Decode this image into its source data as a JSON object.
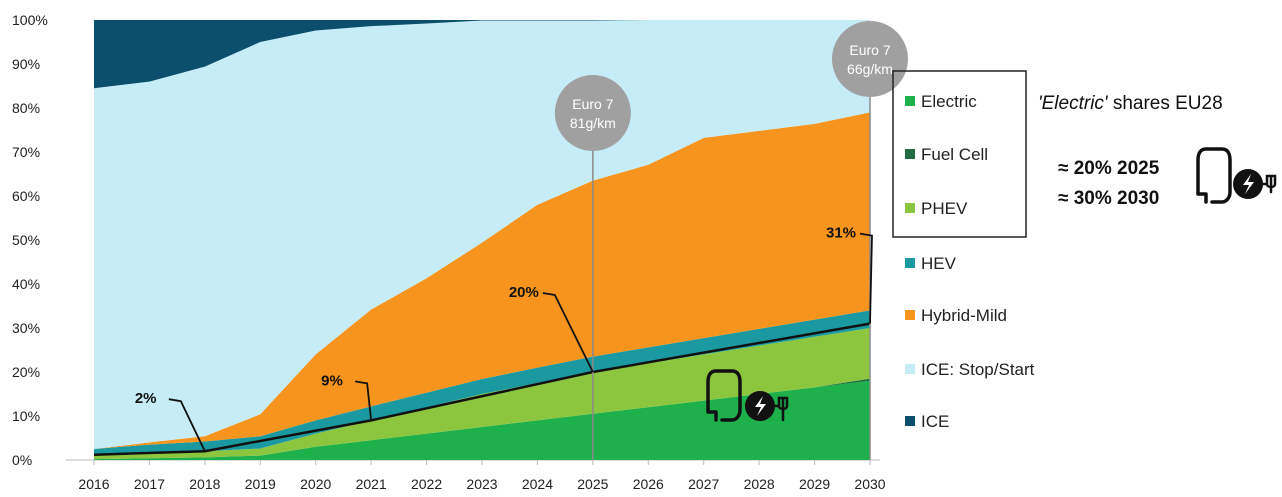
{
  "chart_data": {
    "type": "area",
    "stacked": true,
    "x": [
      2016,
      2017,
      2018,
      2019,
      2020,
      2021,
      2022,
      2023,
      2024,
      2025,
      2026,
      2027,
      2028,
      2029,
      2030
    ],
    "ylim": [
      0,
      100
    ],
    "y_ticks": [
      "0%",
      "10%",
      "20%",
      "30%",
      "40%",
      "50%",
      "60%",
      "70%",
      "80%",
      "90%",
      "100%"
    ],
    "x_ticks": [
      "2016",
      "2017",
      "2018",
      "2019",
      "2020",
      "2021",
      "2022",
      "2023",
      "2024",
      "2025",
      "2026",
      "2027",
      "2028",
      "2029",
      "2030"
    ],
    "series": [
      {
        "name": "Electric",
        "color": "#1db04b",
        "values": [
          0.2,
          0.4,
          0.6,
          1,
          3,
          4.5,
          6,
          7.5,
          9,
          10.5,
          12,
          13.5,
          15,
          16.5,
          18
        ]
      },
      {
        "name": "Fuel Cell",
        "color": "#1f6e43",
        "values": [
          0,
          0,
          0,
          0,
          0,
          0,
          0,
          0,
          0,
          0,
          0,
          0,
          0,
          0,
          0.5
        ]
      },
      {
        "name": "PHEV",
        "color": "#8cc63f",
        "values": [
          1,
          1.3,
          1.4,
          1.6,
          3,
          4.5,
          6,
          7.5,
          8.5,
          9.5,
          10,
          10.5,
          11,
          11.5,
          11.5
        ]
      },
      {
        "name": "HEV",
        "color": "#1a9aa0",
        "values": [
          1.3,
          1.8,
          2.2,
          2.8,
          3,
          3.2,
          3.3,
          3.4,
          3.5,
          3.5,
          3.6,
          3.7,
          3.8,
          3.9,
          4
        ]
      },
      {
        "name": "Hybrid-Mild",
        "color": "#f7941d",
        "values": [
          0,
          0.5,
          1.2,
          5,
          15,
          22,
          26,
          31,
          37,
          40,
          41.5,
          45.5,
          45,
          44.5,
          45
        ]
      },
      {
        "name": "ICE: Stop/Start",
        "color": "#c6ecf7",
        "values": [
          82,
          82,
          84,
          84.6,
          73.6,
          64.4,
          57.9,
          50.5,
          41.9,
          36.4,
          32.9,
          26.8,
          25.2,
          23.6,
          21
        ]
      },
      {
        "name": "ICE",
        "color": "#0b4f6c",
        "values": [
          15.5,
          14,
          10.6,
          5,
          2.4,
          1.4,
          0.8,
          0.1,
          0.1,
          0.1,
          0,
          0,
          0,
          0,
          0
        ]
      }
    ],
    "electric_share_line": {
      "color": "#111111",
      "x": [
        2016,
        2018,
        2021,
        2025,
        2030
      ],
      "y": [
        1.2,
        2,
        9,
        20,
        31
      ]
    },
    "callouts": [
      {
        "label": "2%",
        "x": 2018,
        "y": 2
      },
      {
        "label": "9%",
        "x": 2021,
        "y": 9
      },
      {
        "label": "20%",
        "x": 2025,
        "y": 20
      },
      {
        "label": "31%",
        "x": 2030,
        "y": 31
      }
    ],
    "markers": [
      {
        "x": 2025,
        "line1": "Euro 7",
        "line2": "81g/km",
        "color": "#a0a0a0"
      },
      {
        "x": 2030,
        "line1": "Euro 7",
        "line2": "66g/km",
        "color": "#a0a0a0"
      }
    ],
    "legend_placement": "right"
  },
  "side_note": {
    "title_italic": "'Electric'",
    "title_rest": " shares EU28",
    "line1": "≈ 20% 2025",
    "line2": "≈ 30% 2030"
  }
}
